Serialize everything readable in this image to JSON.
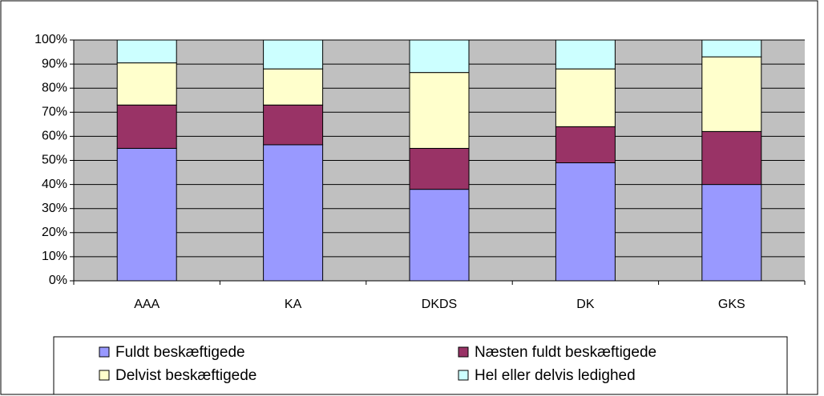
{
  "chart_data": {
    "type": "stacked-bar",
    "categories": [
      "AAA",
      "KA",
      "DKDS",
      "DK",
      "GKS"
    ],
    "series": [
      {
        "name": "Fuldt beskæftigede",
        "color": "#9999ff",
        "values": [
          55,
          56.5,
          38,
          49,
          40
        ]
      },
      {
        "name": "Næsten fuldt beskæftigede",
        "color": "#993366",
        "values": [
          18,
          16.5,
          17,
          15,
          22
        ]
      },
      {
        "name": "Delvist beskæftigede",
        "color": "#ffffcc",
        "values": [
          17.5,
          15,
          31.5,
          24,
          31
        ]
      },
      {
        "name": "Hel eller delvis ledighed",
        "color": "#ccffff",
        "values": [
          9.5,
          12,
          13.5,
          12,
          7
        ]
      }
    ],
    "ylim": [
      0,
      100
    ],
    "yticks": [
      {
        "value": 0,
        "label": "0%"
      },
      {
        "value": 10,
        "label": "10%"
      },
      {
        "value": 20,
        "label": "20%"
      },
      {
        "value": 30,
        "label": "30%"
      },
      {
        "value": 40,
        "label": "40%"
      },
      {
        "value": 50,
        "label": "50%"
      },
      {
        "value": 60,
        "label": "60%"
      },
      {
        "value": 70,
        "label": "70%"
      },
      {
        "value": 80,
        "label": "80%"
      },
      {
        "value": 90,
        "label": "90%"
      },
      {
        "value": 100,
        "label": "100%"
      }
    ],
    "grid": true,
    "plot_background": "#c0c0c0",
    "legend_position": "bottom"
  }
}
